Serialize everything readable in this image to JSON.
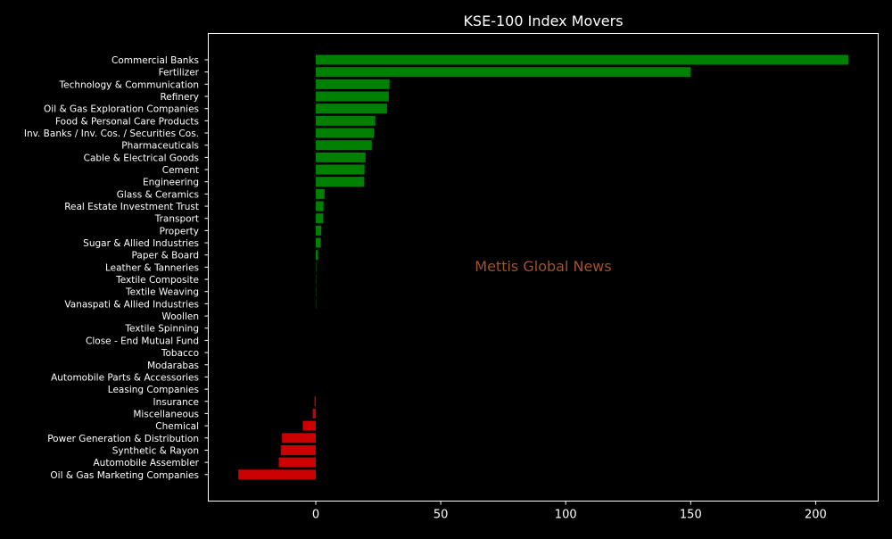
{
  "chart_data": {
    "type": "bar",
    "orientation": "horizontal",
    "title": "KSE-100 Index Movers",
    "xlabel": "",
    "ylabel": "",
    "watermark": "Mettis Global News",
    "xlim": [
      -43,
      225
    ],
    "xticks": [
      0,
      50,
      100,
      150,
      200
    ],
    "grid": false,
    "legend": "none",
    "categories": [
      "Commercial Banks",
      "Fertilizer",
      "Technology & Communication",
      "Refinery",
      "Oil & Gas Exploration Companies",
      "Food & Personal Care Products",
      "Inv. Banks / Inv. Cos. / Securities Cos.",
      "Pharmaceuticals",
      "Cable & Electrical Goods",
      "Cement",
      "Engineering",
      "Glass & Ceramics",
      "Real Estate Investment Trust",
      "Transport",
      "Property",
      "Sugar & Allied Industries",
      "Paper & Board",
      "Leather & Tanneries",
      "Textile Composite",
      "Textile Weaving",
      "Vanaspati & Allied Industries",
      "Woollen",
      "Textile Spinning",
      "Close - End Mutual Fund",
      "Tobacco",
      "Modarabas",
      "Automobile Parts & Accessories",
      "Leasing Companies",
      "Insurance",
      "Miscellaneous",
      "Chemical",
      "Power Generation & Distribution",
      "Synthetic & Rayon",
      "Automobile Assembler",
      "Oil & Gas Marketing Companies"
    ],
    "values": [
      213.0,
      150.0,
      29.5,
      29.2,
      28.5,
      23.8,
      23.2,
      22.4,
      19.9,
      19.5,
      19.4,
      3.5,
      3.1,
      3.0,
      2.2,
      2.0,
      0.9,
      0.15,
      0.12,
      0.12,
      0.1,
      0,
      0,
      0,
      0,
      0,
      0,
      0,
      -0.5,
      -1.2,
      -5.2,
      -13.5,
      -14.0,
      -14.8,
      -31.0
    ],
    "colors": {
      "positive": "#008000",
      "negative": "#cc0000",
      "background": "#000000",
      "text": "#ffffff",
      "axes": "#ffffff",
      "watermark": "#a0522d"
    }
  }
}
